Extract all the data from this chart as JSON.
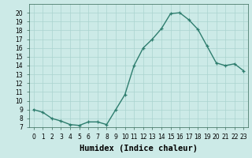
{
  "x": [
    0,
    1,
    2,
    3,
    4,
    5,
    6,
    7,
    8,
    9,
    10,
    11,
    12,
    13,
    14,
    15,
    16,
    17,
    18,
    19,
    20,
    21,
    22,
    23
  ],
  "y": [
    9.0,
    8.7,
    8.0,
    7.7,
    7.3,
    7.2,
    7.6,
    7.6,
    7.3,
    9.0,
    10.7,
    14.0,
    16.0,
    17.0,
    18.2,
    19.9,
    20.0,
    19.2,
    18.1,
    16.2,
    14.3,
    14.0,
    14.2,
    13.4
  ],
  "line_color": "#2e7d6e",
  "marker": "+",
  "marker_size": 3.5,
  "linewidth": 1.0,
  "bg_color": "#cceae7",
  "grid_color": "#aad4d0",
  "xlabel": "Humidex (Indice chaleur)",
  "xlabel_fontsize": 7.5,
  "xlim": [
    -0.5,
    23.5
  ],
  "ylim": [
    7,
    21
  ],
  "yticks": [
    7,
    8,
    9,
    10,
    11,
    12,
    13,
    14,
    15,
    16,
    17,
    18,
    19,
    20
  ],
  "xticks": [
    0,
    1,
    2,
    3,
    4,
    5,
    6,
    7,
    8,
    9,
    10,
    11,
    12,
    13,
    14,
    15,
    16,
    17,
    18,
    19,
    20,
    21,
    22,
    23
  ],
  "tick_fontsize": 5.5
}
